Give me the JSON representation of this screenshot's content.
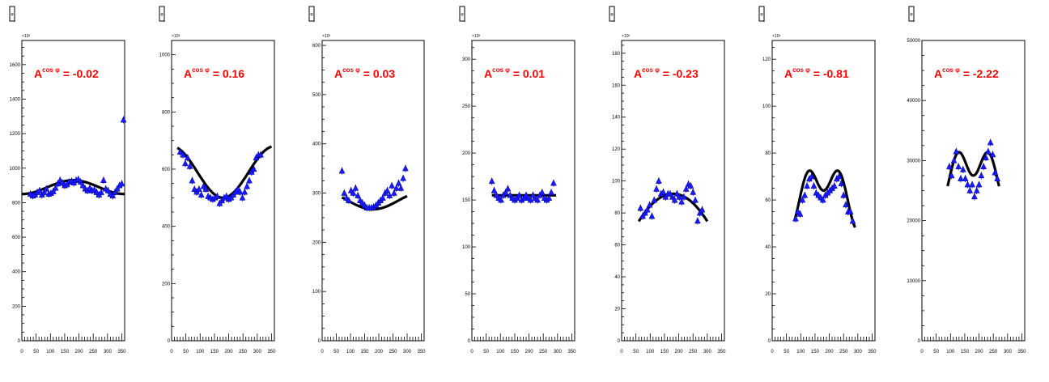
{
  "panel_title": "φ",
  "asym_base": "A",
  "asym_sup": "cos φ",
  "chart_data": [
    {
      "type": "scatter",
      "asymmetry": "-0.02",
      "y_exponent": "×10³",
      "xlim": [
        0,
        360
      ],
      "ylim": [
        0,
        1740
      ],
      "x_ticks": [
        0,
        50,
        100,
        150,
        200,
        250,
        300,
        350
      ],
      "y_ticks": [
        0,
        200,
        400,
        600,
        800,
        1000,
        1200,
        1400,
        1600
      ],
      "y_tick_labels": [
        "0",
        "200",
        "400",
        "600",
        "800",
        "1000",
        "1200",
        "1400",
        "1600"
      ],
      "points": [
        [
          30,
          850
        ],
        [
          38,
          840
        ],
        [
          46,
          845
        ],
        [
          54,
          860
        ],
        [
          62,
          870
        ],
        [
          70,
          845
        ],
        [
          78,
          860
        ],
        [
          86,
          880
        ],
        [
          94,
          850
        ],
        [
          102,
          855
        ],
        [
          110,
          865
        ],
        [
          118,
          885
        ],
        [
          126,
          910
        ],
        [
          134,
          930
        ],
        [
          142,
          915
        ],
        [
          150,
          900
        ],
        [
          158,
          905
        ],
        [
          166,
          920
        ],
        [
          174,
          925
        ],
        [
          182,
          915
        ],
        [
          190,
          930
        ],
        [
          198,
          935
        ],
        [
          206,
          920
        ],
        [
          214,
          900
        ],
        [
          222,
          880
        ],
        [
          230,
          870
        ],
        [
          238,
          885
        ],
        [
          246,
          870
        ],
        [
          254,
          875
        ],
        [
          262,
          860
        ],
        [
          270,
          845
        ],
        [
          278,
          860
        ],
        [
          286,
          930
        ],
        [
          294,
          880
        ],
        [
          302,
          870
        ],
        [
          310,
          850
        ],
        [
          318,
          840
        ],
        [
          326,
          860
        ],
        [
          334,
          880
        ],
        [
          342,
          900
        ],
        [
          350,
          910
        ],
        [
          356,
          1280
        ]
      ],
      "fit": {
        "x": [
          0,
          360
        ],
        "a": 890,
        "b": -40,
        "c": 0,
        "mode": "sin"
      }
    },
    {
      "type": "scatter",
      "asymmetry": "0.16",
      "y_exponent": "×10³",
      "xlim": [
        0,
        360
      ],
      "ylim": [
        0,
        1050
      ],
      "x_ticks": [
        0,
        50,
        100,
        150,
        200,
        250,
        300,
        350
      ],
      "y_ticks": [
        0,
        200,
        400,
        600,
        800,
        1000
      ],
      "y_tick_labels": [
        "0",
        "200",
        "400",
        "600",
        "800",
        "1000"
      ],
      "points": [
        [
          30,
          660
        ],
        [
          40,
          650
        ],
        [
          48,
          620
        ],
        [
          56,
          640
        ],
        [
          64,
          610
        ],
        [
          72,
          560
        ],
        [
          80,
          530
        ],
        [
          88,
          520
        ],
        [
          96,
          530
        ],
        [
          104,
          510
        ],
        [
          112,
          540
        ],
        [
          120,
          530
        ],
        [
          128,
          505
        ],
        [
          136,
          500
        ],
        [
          144,
          495
        ],
        [
          152,
          500
        ],
        [
          160,
          505
        ],
        [
          168,
          480
        ],
        [
          176,
          490
        ],
        [
          184,
          500
        ],
        [
          192,
          505
        ],
        [
          200,
          495
        ],
        [
          208,
          500
        ],
        [
          216,
          510
        ],
        [
          224,
          520
        ],
        [
          232,
          530
        ],
        [
          240,
          520
        ],
        [
          248,
          500
        ],
        [
          256,
          520
        ],
        [
          264,
          540
        ],
        [
          272,
          560
        ],
        [
          280,
          590
        ],
        [
          288,
          600
        ],
        [
          296,
          640
        ],
        [
          304,
          650
        ],
        [
          312,
          650
        ]
      ],
      "fit": {
        "x": [
          20,
          350
        ],
        "a": 590,
        "b": 90,
        "c": 0,
        "mode": "cos"
      }
    },
    {
      "type": "scatter",
      "asymmetry": "0.03",
      "y_exponent": "×10³",
      "xlim": [
        0,
        360
      ],
      "ylim": [
        0,
        610
      ],
      "x_ticks": [
        0,
        50,
        100,
        150,
        200,
        250,
        300,
        350
      ],
      "y_ticks": [
        0,
        100,
        200,
        300,
        400,
        500,
        600
      ],
      "y_tick_labels": [
        "0",
        "100",
        "200",
        "300",
        "400",
        "500",
        "600"
      ],
      "points": [
        [
          70,
          345
        ],
        [
          78,
          300
        ],
        [
          86,
          290
        ],
        [
          94,
          285
        ],
        [
          102,
          305
        ],
        [
          110,
          300
        ],
        [
          118,
          310
        ],
        [
          126,
          295
        ],
        [
          134,
          285
        ],
        [
          142,
          280
        ],
        [
          150,
          275
        ],
        [
          158,
          270
        ],
        [
          166,
          270
        ],
        [
          174,
          270
        ],
        [
          182,
          272
        ],
        [
          190,
          275
        ],
        [
          198,
          280
        ],
        [
          206,
          285
        ],
        [
          214,
          290
        ],
        [
          222,
          300
        ],
        [
          230,
          305
        ],
        [
          238,
          295
        ],
        [
          246,
          315
        ],
        [
          254,
          300
        ],
        [
          262,
          310
        ],
        [
          270,
          320
        ],
        [
          278,
          310
        ],
        [
          286,
          330
        ],
        [
          294,
          350
        ]
      ],
      "fit": {
        "x": [
          70,
          300
        ],
        "a": 285,
        "b": 18,
        "c": 0,
        "mode": "cos"
      }
    },
    {
      "type": "scatter",
      "asymmetry": "0.01",
      "y_exponent": "×10³",
      "xlim": [
        0,
        360
      ],
      "ylim": [
        0,
        320
      ],
      "x_ticks": [
        0,
        50,
        100,
        150,
        200,
        250,
        300,
        350
      ],
      "y_ticks": [
        0,
        50,
        100,
        150,
        200,
        250,
        300
      ],
      "y_tick_labels": [
        "0",
        "50",
        "100",
        "150",
        "200",
        "250",
        "300"
      ],
      "points": [
        [
          70,
          170
        ],
        [
          78,
          160
        ],
        [
          86,
          155
        ],
        [
          94,
          152
        ],
        [
          102,
          150
        ],
        [
          110,
          155
        ],
        [
          118,
          158
        ],
        [
          126,
          162
        ],
        [
          134,
          155
        ],
        [
          142,
          152
        ],
        [
          150,
          150
        ],
        [
          158,
          152
        ],
        [
          166,
          155
        ],
        [
          174,
          150
        ],
        [
          182,
          152
        ],
        [
          190,
          155
        ],
        [
          198,
          152
        ],
        [
          206,
          150
        ],
        [
          214,
          155
        ],
        [
          222,
          152
        ],
        [
          230,
          150
        ],
        [
          238,
          155
        ],
        [
          246,
          158
        ],
        [
          254,
          152
        ],
        [
          262,
          150
        ],
        [
          270,
          152
        ],
        [
          278,
          158
        ],
        [
          286,
          168
        ]
      ],
      "fit": {
        "x": [
          70,
          295
        ],
        "a": 155,
        "b": 0,
        "c": 0,
        "mode": "cos"
      }
    },
    {
      "type": "scatter",
      "asymmetry": "-0.23",
      "y_exponent": "×10³",
      "xlim": [
        0,
        360
      ],
      "ylim": [
        0,
        188
      ],
      "x_ticks": [
        0,
        50,
        100,
        150,
        200,
        250,
        300,
        350
      ],
      "y_ticks": [
        0,
        20,
        40,
        60,
        80,
        100,
        120,
        140,
        160,
        180
      ],
      "y_tick_labels": [
        "0",
        "20",
        "40",
        "60",
        "80",
        "100",
        "120",
        "140",
        "160",
        "180"
      ],
      "points": [
        [
          66,
          83
        ],
        [
          74,
          78
        ],
        [
          82,
          80
        ],
        [
          90,
          82
        ],
        [
          98,
          85
        ],
        [
          106,
          78
        ],
        [
          114,
          88
        ],
        [
          122,
          95
        ],
        [
          130,
          100
        ],
        [
          138,
          92
        ],
        [
          146,
          93
        ],
        [
          154,
          90
        ],
        [
          162,
          92
        ],
        [
          170,
          92
        ],
        [
          178,
          90
        ],
        [
          186,
          88
        ],
        [
          194,
          92
        ],
        [
          202,
          90
        ],
        [
          210,
          87
        ],
        [
          218,
          90
        ],
        [
          226,
          95
        ],
        [
          234,
          98
        ],
        [
          242,
          97
        ],
        [
          250,
          93
        ],
        [
          258,
          88
        ],
        [
          266,
          75
        ],
        [
          274,
          80
        ],
        [
          282,
          82
        ]
      ],
      "fit": {
        "x": [
          60,
          300
        ],
        "a": 92,
        "b": -21,
        "c": 0,
        "mode": "poly"
      }
    },
    {
      "type": "scatter",
      "asymmetry": "-0.81",
      "y_exponent": "×10³",
      "xlim": [
        0,
        360
      ],
      "ylim": [
        0,
        128
      ],
      "x_ticks": [
        0,
        50,
        100,
        150,
        200,
        250,
        300,
        350
      ],
      "y_ticks": [
        0,
        20,
        40,
        60,
        80,
        100,
        120
      ],
      "y_tick_labels": [
        "0",
        "20",
        "40",
        "60",
        "80",
        "100",
        "120"
      ],
      "points": [
        [
          82,
          52
        ],
        [
          90,
          55
        ],
        [
          98,
          54
        ],
        [
          106,
          60
        ],
        [
          114,
          62
        ],
        [
          122,
          66
        ],
        [
          130,
          69
        ],
        [
          138,
          70
        ],
        [
          146,
          66
        ],
        [
          154,
          63
        ],
        [
          162,
          62
        ],
        [
          170,
          61
        ],
        [
          178,
          60
        ],
        [
          186,
          62
        ],
        [
          194,
          63
        ],
        [
          202,
          64
        ],
        [
          210,
          65
        ],
        [
          218,
          66
        ],
        [
          226,
          69
        ],
        [
          234,
          70
        ],
        [
          242,
          67
        ],
        [
          250,
          62
        ],
        [
          258,
          58
        ],
        [
          266,
          55
        ],
        [
          274,
          55
        ],
        [
          282,
          51
        ]
      ],
      "fit": {
        "x": [
          78,
          290
        ],
        "a": 0,
        "b": 0,
        "c": 0,
        "mode": "double"
      }
    },
    {
      "type": "scatter",
      "asymmetry": "-2.22",
      "y_exponent": "",
      "xlim": [
        0,
        360
      ],
      "ylim": [
        0,
        50000
      ],
      "x_ticks": [
        0,
        50,
        100,
        150,
        200,
        250,
        300,
        350
      ],
      "y_ticks": [
        0,
        10000,
        20000,
        30000,
        40000,
        50000
      ],
      "y_tick_labels": [
        "0",
        "10000",
        "20000",
        "30000",
        "40000",
        "50000"
      ],
      "points": [
        [
          96,
          29000
        ],
        [
          104,
          27500
        ],
        [
          112,
          30000
        ],
        [
          120,
          31500
        ],
        [
          128,
          29000
        ],
        [
          136,
          27000
        ],
        [
          144,
          28500
        ],
        [
          152,
          27000
        ],
        [
          160,
          26000
        ],
        [
          168,
          25000
        ],
        [
          176,
          26000
        ],
        [
          184,
          24000
        ],
        [
          192,
          25000
        ],
        [
          200,
          26000
        ],
        [
          208,
          27500
        ],
        [
          216,
          29000
        ],
        [
          224,
          30500
        ],
        [
          232,
          31500
        ],
        [
          240,
          33000
        ],
        [
          248,
          31000
        ],
        [
          256,
          28000
        ],
        [
          264,
          27000
        ]
      ],
      "fit": {
        "x": [
          90,
          270
        ],
        "a": 0,
        "b": 0,
        "c": 0,
        "mode": "double2"
      }
    }
  ]
}
